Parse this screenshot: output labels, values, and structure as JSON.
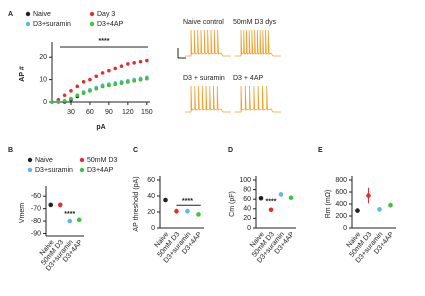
{
  "chart_data": [
    {
      "type": "scatter",
      "panel": "A",
      "xlabel": "pA",
      "ylabel": "AP #",
      "annotation": "****",
      "x": [
        0,
        10,
        20,
        30,
        40,
        50,
        60,
        70,
        80,
        90,
        100,
        110,
        120,
        130,
        140,
        150
      ],
      "xlim": [
        0,
        155
      ],
      "xticks": [
        30,
        60,
        90,
        120,
        150
      ],
      "ylim": [
        0,
        25
      ],
      "yticks": [
        0,
        10,
        20
      ],
      "series": [
        {
          "name": "Naive",
          "color": "#222222",
          "values": [
            0,
            0,
            0,
            1,
            2.5,
            4,
            5,
            6,
            7,
            7.5,
            8,
            8.5,
            9,
            9.5,
            10,
            10.5
          ]
        },
        {
          "name": "Day 3",
          "color": "#e03030",
          "values": [
            0,
            1,
            3,
            5,
            7,
            9,
            10,
            11.5,
            13,
            14,
            15,
            16,
            17,
            17.5,
            18,
            18.5
          ]
        },
        {
          "name": "D3+suramin",
          "color": "#5bb8e8",
          "values": [
            0,
            0,
            0.5,
            1.5,
            3,
            4.5,
            5.5,
            6.5,
            7.5,
            8,
            8.5,
            9,
            9.5,
            10,
            10.5,
            11
          ]
        },
        {
          "name": "D3+4AP",
          "color": "#3cc43c",
          "values": [
            0,
            0,
            0.5,
            1.5,
            3,
            4,
            5,
            6,
            7,
            7.5,
            8,
            8.5,
            9,
            9.5,
            10,
            10.5
          ]
        }
      ],
      "traces": [
        "Naive control",
        "50mM D3 dys",
        "D3 + suramin",
        "D3 + 4AP"
      ]
    },
    {
      "type": "dot",
      "panel": "B",
      "ylabel": "Vmem",
      "annotation": "****",
      "legend": true,
      "categories": [
        "Naive",
        "50mM D3",
        "D3+suramin",
        "D3+4AP"
      ],
      "colors": [
        "#222222",
        "#e03030",
        "#5bb8e8",
        "#3cc43c"
      ],
      "values": [
        -67,
        -67,
        -80,
        -79
      ],
      "errors": [
        1.5,
        2,
        1.5,
        1.5
      ],
      "ylim": [
        -92,
        -55
      ],
      "yticks": [
        -60,
        -70,
        -80,
        -90
      ]
    },
    {
      "type": "dot",
      "panel": "C",
      "ylabel": "AP threshold (pA)",
      "annotation": "****",
      "categories": [
        "Naive",
        "50mM D3",
        "D3+suramin",
        "D3+4AP"
      ],
      "colors": [
        "#222222",
        "#e03030",
        "#5bb8e8",
        "#3cc43c"
      ],
      "values": [
        35,
        21,
        21,
        17
      ],
      "errors": [
        2,
        3,
        2,
        2
      ],
      "ylim": [
        0,
        60
      ],
      "yticks": [
        0,
        20,
        40,
        60
      ]
    },
    {
      "type": "dot",
      "panel": "D",
      "ylabel": "Cm (pF)",
      "annotation": "****",
      "categories": [
        "Naive",
        "50mM D3",
        "D3+suramin",
        "D3+4AP"
      ],
      "colors": [
        "#222222",
        "#e03030",
        "#5bb8e8",
        "#3cc43c"
      ],
      "values": [
        62,
        38,
        70,
        63
      ],
      "errors": [
        3,
        3,
        4,
        4
      ],
      "ylim": [
        0,
        100
      ],
      "yticks": [
        0,
        20,
        40,
        60,
        80,
        100
      ]
    },
    {
      "type": "dot",
      "panel": "E",
      "ylabel": "Rm (mΩ)",
      "categories": [
        "Naive",
        "50mM D3",
        "D3+suramin",
        "D3+4AP"
      ],
      "colors": [
        "#222222",
        "#e03030",
        "#5bb8e8",
        "#3cc43c"
      ],
      "values": [
        290,
        540,
        310,
        380
      ],
      "errors": [
        15,
        130,
        40,
        40
      ],
      "ylim": [
        0,
        800
      ],
      "yticks": [
        0,
        200,
        400,
        600,
        800
      ]
    }
  ]
}
